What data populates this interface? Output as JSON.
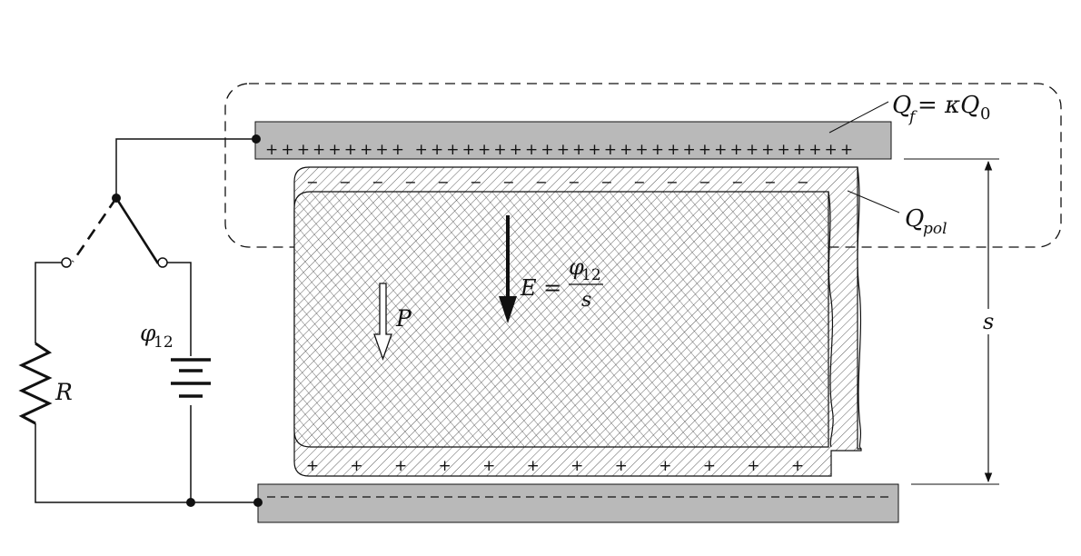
{
  "labels": {
    "free_charge": {
      "q": "Q",
      "sub_f": "f",
      "eq": "= κQ",
      "sub_0": "0"
    },
    "polarization_charge": {
      "q": "Q",
      "sub": "pol"
    },
    "field": {
      "e": "E =",
      "phi": "φ",
      "sub": "12",
      "denom": "s"
    },
    "polarization": "P",
    "voltage": {
      "phi": "φ",
      "sub": "12"
    },
    "resistor": "R",
    "separation": "s"
  },
  "charges": {
    "top_plate_free": "+++++++++ ++++++++++++++++++++++++++++",
    "dielectric_top_sign": "−",
    "dielectric_top_count": 16,
    "dielectric_bottom_sign": "+",
    "dielectric_bottom_count": 12,
    "bottom_plate_dash_pattern": "dashed"
  },
  "colors": {
    "plate_fill": "#b9b9b9",
    "line": "#111111",
    "hatch": "#333333"
  },
  "icons": {
    "battery": "battery-icon",
    "resistor": "resistor-icon",
    "switch": "switch-icon"
  }
}
